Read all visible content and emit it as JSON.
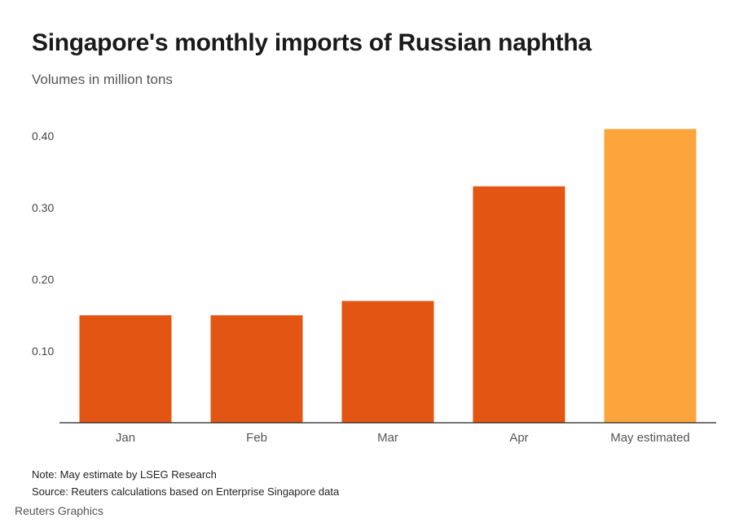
{
  "title": "Singapore's monthly imports of Russian naphtha",
  "subtitle": "Volumes in million tons",
  "chart_data": {
    "type": "bar",
    "categories": [
      "Jan",
      "Feb",
      "Mar",
      "Apr",
      "May estimated"
    ],
    "values": [
      0.15,
      0.15,
      0.17,
      0.33,
      0.41
    ],
    "bar_colors": [
      "#e35512",
      "#e35512",
      "#e35512",
      "#e35512",
      "#fba53c"
    ],
    "yticks": [
      "0.10",
      "0.20",
      "0.30",
      "0.40"
    ],
    "ytick_values": [
      0.1,
      0.2,
      0.3,
      0.4
    ],
    "ylim": [
      0,
      0.4
    ],
    "grid": false,
    "title": "Singapore's monthly imports of Russian naphtha",
    "subtitle": "Volumes in million tons"
  },
  "notes": {
    "note": "Note: May estimate by LSEG Research",
    "source": "Source: Reuters calculations based on Enterprise Singapore data"
  },
  "credit": "Reuters Graphics",
  "colors": {
    "bar": "#e35512",
    "bar_estimated": "#fba53c",
    "axis": "#222222"
  }
}
